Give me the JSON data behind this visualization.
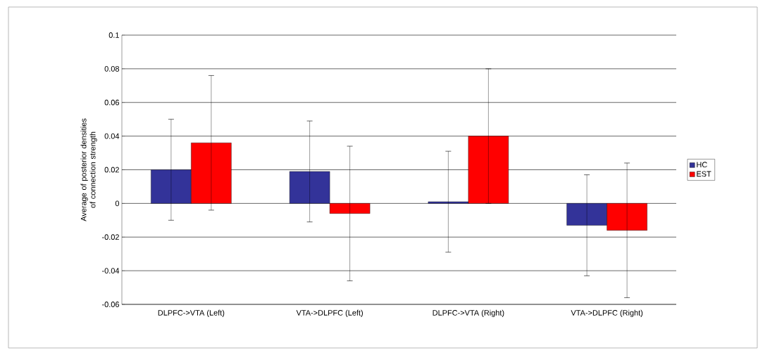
{
  "chart_data": {
    "type": "bar",
    "ylabel": "Average of posterior densities of connection strength",
    "categories": [
      "DLPFC->VTA (Left)",
      "VTA->DLPFC (Left)",
      "DLPFC->VTA (Right)",
      "VTA->DLPFC (Right)"
    ],
    "series": [
      {
        "name": "HC",
        "color": "#333399",
        "values": [
          0.02,
          0.019,
          0.001,
          -0.013
        ],
        "errors": [
          0.03,
          0.03,
          0.03,
          0.03
        ]
      },
      {
        "name": "EST",
        "color": "#ff0000",
        "values": [
          0.036,
          -0.006,
          0.04,
          -0.016
        ],
        "errors": [
          0.04,
          0.04,
          0.04,
          0.04
        ]
      }
    ],
    "ylim": [
      -0.06,
      0.1
    ],
    "yticks": [
      -0.06,
      -0.04,
      -0.02,
      0,
      0.02,
      0.04,
      0.06,
      0.08,
      0.1
    ],
    "grid": "y",
    "legend": "right"
  }
}
